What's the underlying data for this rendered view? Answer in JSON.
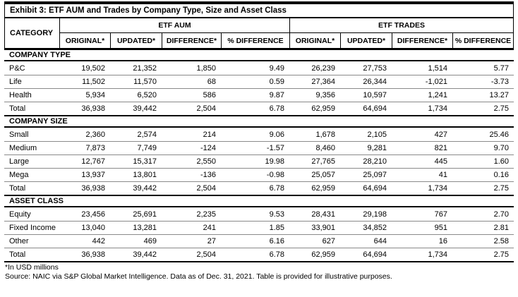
{
  "title": "Exhibit 3: ETF AUM and Trades by Company Type, Size and Asset Class",
  "header": {
    "category_label": "CATEGORY",
    "groups": [
      {
        "label": "ETF AUM",
        "columns": [
          "ORIGINAL*",
          "UPDATED*",
          "DIFFERENCE*",
          "% DIFFERENCE"
        ]
      },
      {
        "label": "ETF TRADES",
        "columns": [
          "ORIGINAL*",
          "UPDATED*",
          "DIFFERENCE*",
          "% DIFFERENCE"
        ]
      }
    ]
  },
  "sections": [
    {
      "name": "COMPANY TYPE",
      "rows": [
        {
          "label": "P&C",
          "values": [
            "19,502",
            "21,352",
            "1,850",
            "9.49",
            "26,239",
            "27,753",
            "1,514",
            "5.77"
          ]
        },
        {
          "label": "Life",
          "values": [
            "11,502",
            "11,570",
            "68",
            "0.59",
            "27,364",
            "26,344",
            "-1,021",
            "-3.73"
          ]
        },
        {
          "label": "Health",
          "values": [
            "5,934",
            "6,520",
            "586",
            "9.87",
            "9,356",
            "10,597",
            "1,241",
            "13.27"
          ]
        },
        {
          "label": "Total",
          "values": [
            "36,938",
            "39,442",
            "2,504",
            "6.78",
            "62,959",
            "64,694",
            "1,734",
            "2.75"
          ]
        }
      ]
    },
    {
      "name": "COMPANY SIZE",
      "rows": [
        {
          "label": "Small",
          "values": [
            "2,360",
            "2,574",
            "214",
            "9.06",
            "1,678",
            "2,105",
            "427",
            "25.46"
          ]
        },
        {
          "label": "Medium",
          "values": [
            "7,873",
            "7,749",
            "-124",
            "-1.57",
            "8,460",
            "9,281",
            "821",
            "9.70"
          ]
        },
        {
          "label": "Large",
          "values": [
            "12,767",
            "15,317",
            "2,550",
            "19.98",
            "27,765",
            "28,210",
            "445",
            "1.60"
          ]
        },
        {
          "label": "Mega",
          "values": [
            "13,937",
            "13,801",
            "-136",
            "-0.98",
            "25,057",
            "25,097",
            "41",
            "0.16"
          ]
        },
        {
          "label": "Total",
          "values": [
            "36,938",
            "39,442",
            "2,504",
            "6.78",
            "62,959",
            "64,694",
            "1,734",
            "2.75"
          ]
        }
      ]
    },
    {
      "name": "ASSET CLASS",
      "rows": [
        {
          "label": "Equity",
          "values": [
            "23,456",
            "25,691",
            "2,235",
            "9.53",
            "28,431",
            "29,198",
            "767",
            "2.70"
          ]
        },
        {
          "label": "Fixed Income",
          "values": [
            "13,040",
            "13,281",
            "241",
            "1.85",
            "33,901",
            "34,852",
            "951",
            "2.81"
          ]
        },
        {
          "label": "Other",
          "values": [
            "442",
            "469",
            "27",
            "6.16",
            "627",
            "644",
            "16",
            "2.58"
          ]
        },
        {
          "label": "Total",
          "values": [
            "36,938",
            "39,442",
            "2,504",
            "6.78",
            "62,959",
            "64,694",
            "1,734",
            "2.75"
          ]
        }
      ]
    }
  ],
  "footnotes": {
    "units": "*In USD millions",
    "source": "Source: NAIC via S&P Global Market Intelligence. Data as of Dec. 31, 2021. Table is provided for illustrative purposes."
  },
  "colors": {
    "text": "#000000",
    "border_strong": "#000000",
    "row_separator": "#8a8a8a",
    "background": "#ffffff"
  }
}
